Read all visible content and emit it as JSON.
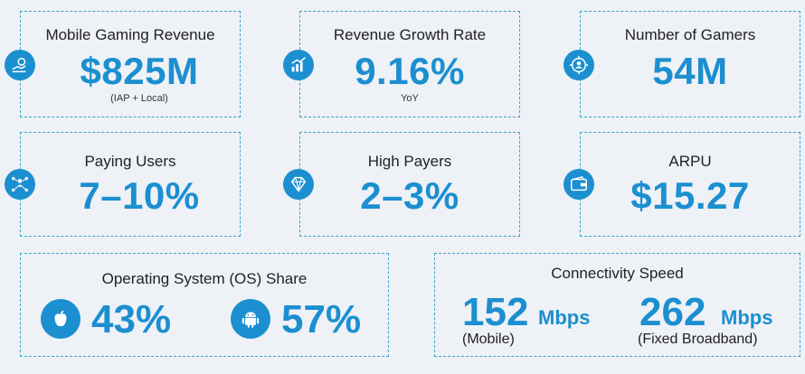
{
  "stats": {
    "revenue": {
      "title": "Mobile Gaming Revenue",
      "value": "$825M",
      "note": "(IAP + Local)"
    },
    "growth": {
      "title": "Revenue Growth Rate",
      "value": "9.16%",
      "note": "YoY"
    },
    "gamers": {
      "title": "Number of Gamers",
      "value": "54M"
    },
    "paying": {
      "title": "Paying Users",
      "value": "7–10%"
    },
    "high": {
      "title": "High Payers",
      "value": "2–3%"
    },
    "arpu": {
      "title": "ARPU",
      "value": "$15.27"
    }
  },
  "os": {
    "title": "Operating System (OS) Share",
    "ios": "43%",
    "android": "57%"
  },
  "connectivity": {
    "title": "Connectivity Speed",
    "mobile": {
      "value": "152",
      "unit": "Mbps",
      "label": "(Mobile)"
    },
    "fixed": {
      "value": "262",
      "unit": "Mbps",
      "label": "(Fixed Broadband)"
    }
  },
  "colors": {
    "accent": "#1b8fd0",
    "border": "#3aa6cc",
    "background": "#eef1f6"
  }
}
